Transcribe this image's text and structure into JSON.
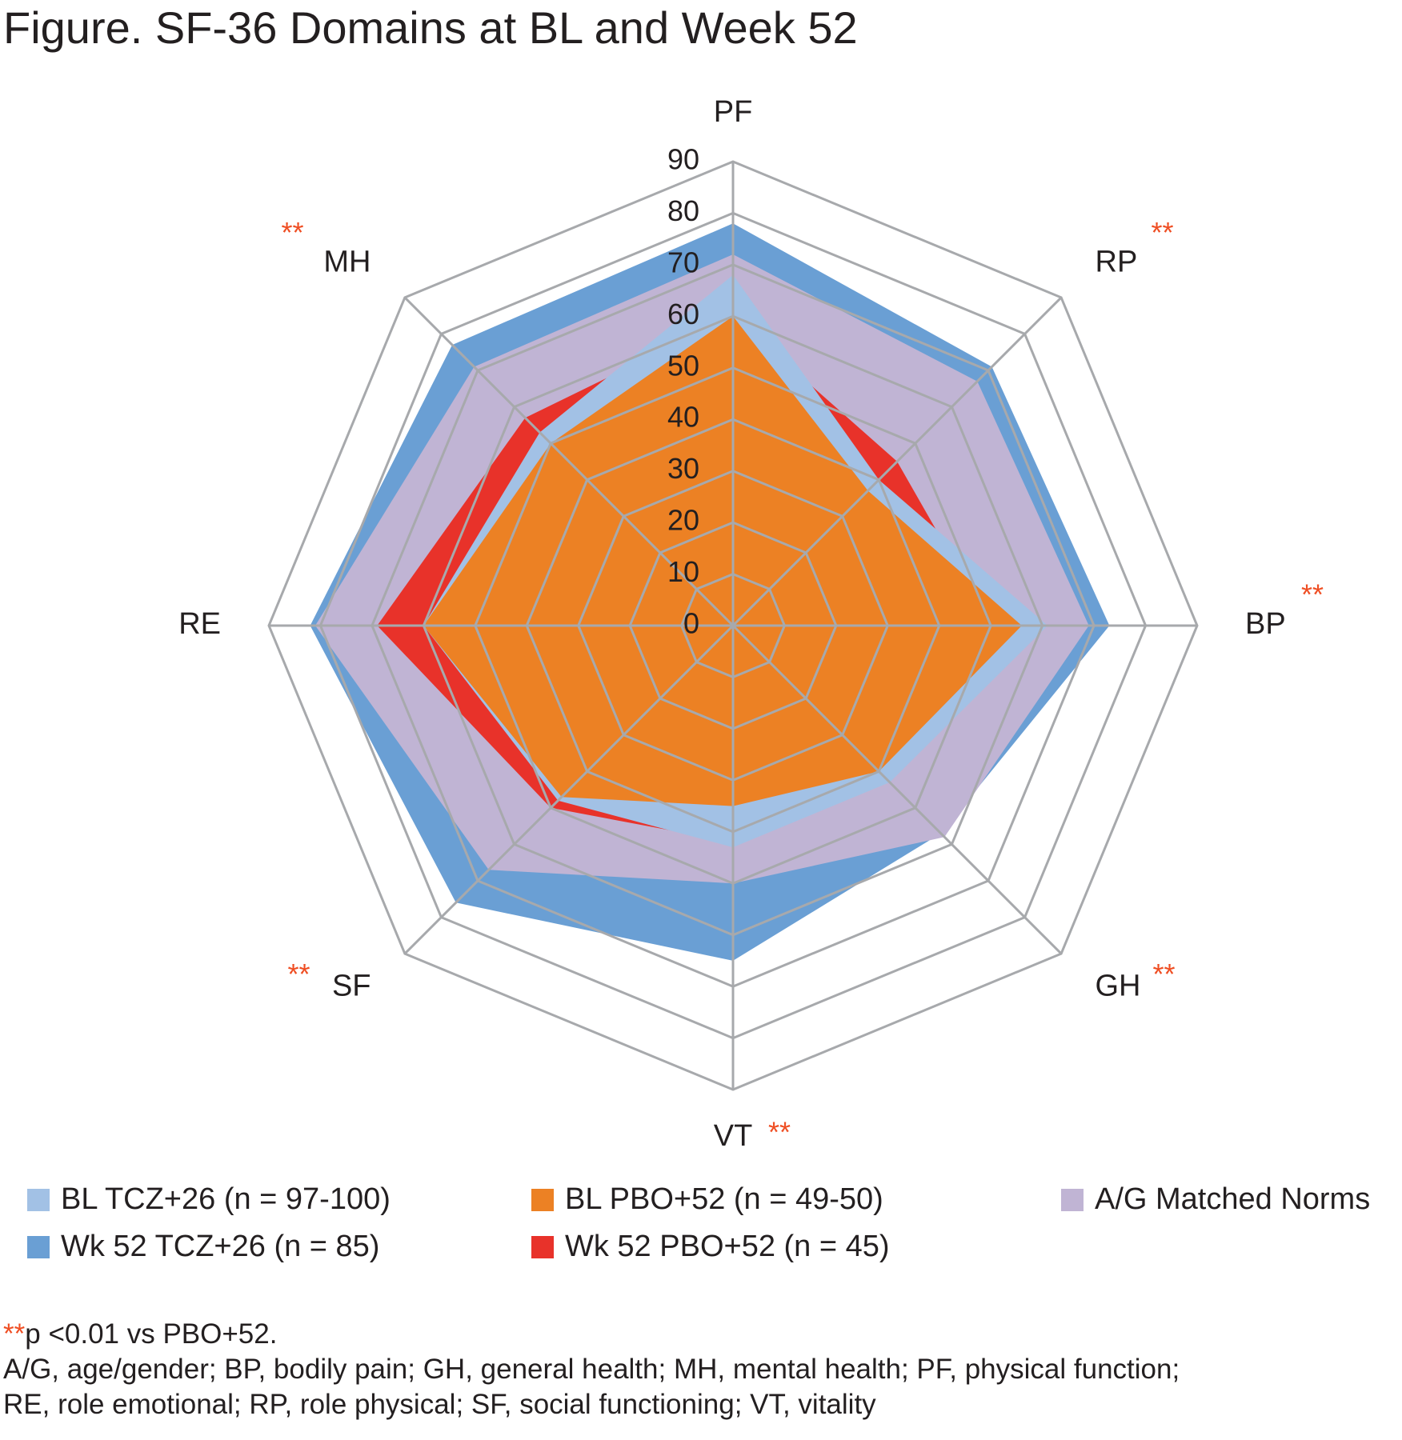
{
  "title": "Figure. SF-36 Domains at BL and Week 52",
  "chart_data": {
    "type": "radar",
    "categories": [
      "PF",
      "RP",
      "BP",
      "GH",
      "VT",
      "SF",
      "RE",
      "MH"
    ],
    "significant": [
      false,
      true,
      true,
      true,
      true,
      true,
      false,
      true
    ],
    "significance_marker": "**",
    "axis": {
      "min": 0,
      "max": 90,
      "step": 10,
      "tick_labels": [
        "0",
        "10",
        "20",
        "30",
        "40",
        "50",
        "60",
        "70",
        "80",
        "90"
      ]
    },
    "series": [
      {
        "name": "Wk 52 TCZ+26 (n = 85)",
        "color": "#6a9fd4",
        "values": [
          78,
          71,
          73,
          57,
          65,
          76,
          82,
          77
        ]
      },
      {
        "name": "A/G Matched Norms",
        "color": "#c0b4d4",
        "values": [
          72,
          67,
          69,
          58,
          50,
          67,
          81,
          71
        ]
      },
      {
        "name": "Wk 52 PBO+52 (n = 45)",
        "color": "#e8322a",
        "values": [
          60,
          45,
          50,
          42,
          42,
          50,
          69,
          57
        ]
      },
      {
        "name": "BL TCZ+26 (n = 97-100)",
        "color": "#a2c1e5",
        "values": [
          68,
          40,
          61,
          43,
          43,
          48,
          60,
          53
        ]
      },
      {
        "name": "BL PBO+52 (n = 49-50)",
        "color": "#ec8124",
        "values": [
          60,
          37,
          56,
          40,
          35,
          47,
          60,
          50
        ]
      }
    ]
  },
  "legend": [
    {
      "label": "BL TCZ+26 (n = 97-100)",
      "color": "#a2c1e5"
    },
    {
      "label": "BL PBO+52 (n = 49-50)",
      "color": "#ec8124"
    },
    {
      "label": "A/G Matched Norms",
      "color": "#c0b4d4"
    },
    {
      "label": "Wk 52 TCZ+26 (n = 85)",
      "color": "#6a9fd4"
    },
    {
      "label": "Wk 52 PBO+52 (n = 45)",
      "color": "#e8322a"
    }
  ],
  "footnote": {
    "marker": "**",
    "line1": "p <0.01 vs PBO+52.",
    "line2": "A/G, age/gender; BP, bodily pain; GH, general health; MH, mental health; PF, physical function;",
    "line3": "RE, role emotional; RP, role physical; SF, social functioning; VT, vitality"
  },
  "colors": {
    "grid": "#a7a9ac",
    "star": "#ef4e23",
    "text": "#231f20"
  }
}
